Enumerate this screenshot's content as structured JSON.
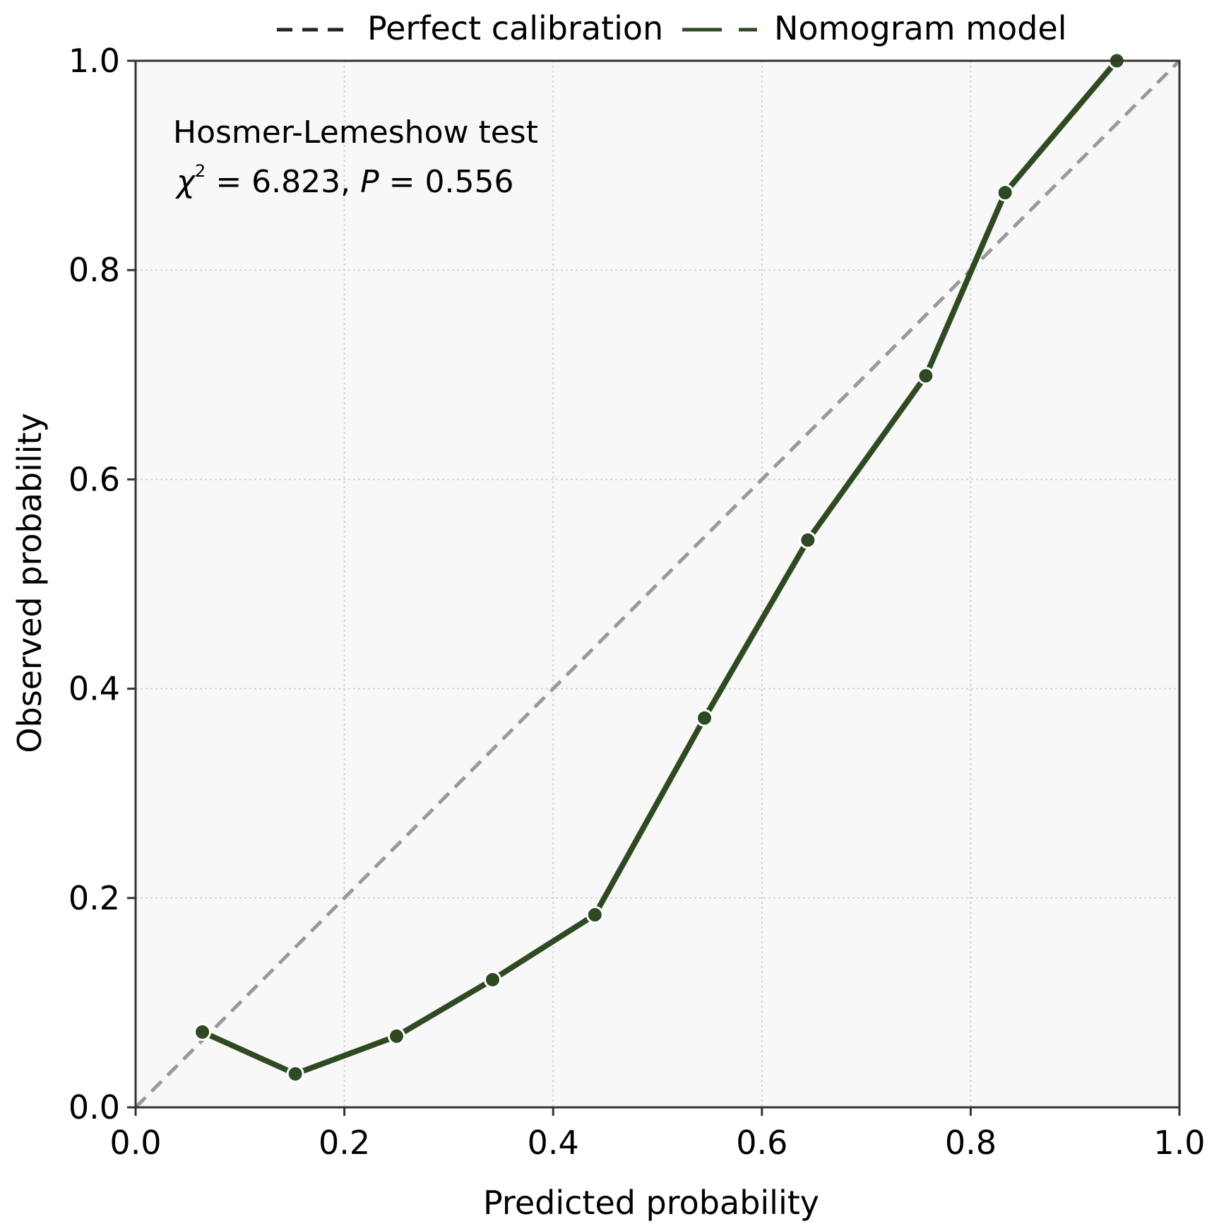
{
  "chart_data": {
    "type": "line",
    "xlabel": "Predicted probability",
    "ylabel": "Observed probability",
    "xlim": [
      0.0,
      1.0
    ],
    "ylim": [
      0.0,
      1.0
    ],
    "x_ticks": [
      "0.0",
      "0.2",
      "0.4",
      "0.6",
      "0.8",
      "1.0"
    ],
    "y_ticks": [
      "0.0",
      "0.2",
      "0.4",
      "0.6",
      "0.8",
      "1.0"
    ],
    "grid": true,
    "legend_position": "top-center",
    "background_color": "#f8f8f8",
    "annotation": {
      "line1": "Hosmer-Lemeshow test",
      "chi_symbol": "χ",
      "superscript": "2",
      "stat_text": " = 6.823, ",
      "p_symbol": "P",
      "p_text": " = 0.556"
    },
    "series": [
      {
        "name": "Perfect calibration",
        "style": "dashed",
        "color": "#999999",
        "legend_color": "#222222",
        "x": [
          0.0,
          1.0
        ],
        "y": [
          0.0,
          1.0
        ]
      },
      {
        "name": "Nomogram model",
        "style": "solid-with-markers",
        "color": "#2f4a22",
        "x": [
          0.064,
          0.153,
          0.25,
          0.342,
          0.44,
          0.545,
          0.644,
          0.757,
          0.833,
          0.94
        ],
        "y": [
          0.072,
          0.032,
          0.068,
          0.122,
          0.184,
          0.372,
          0.542,
          0.699,
          0.874,
          1.0
        ]
      }
    ]
  }
}
